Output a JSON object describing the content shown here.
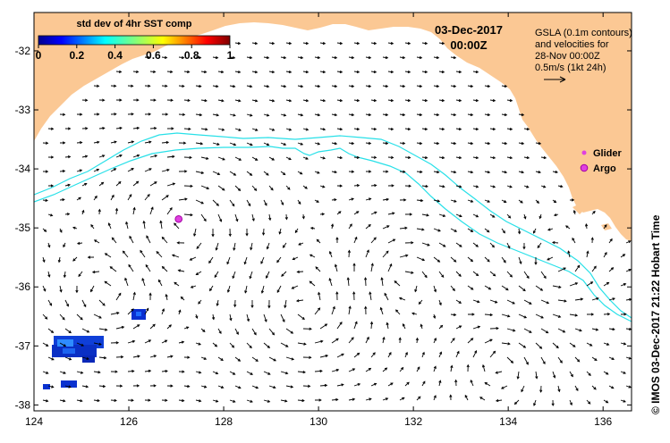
{
  "map": {
    "lon_range": [
      124,
      136.6
    ],
    "lat_range": [
      -38.1,
      -31.35
    ],
    "x_ticks": [
      124,
      126,
      128,
      130,
      132,
      134,
      136
    ],
    "x_tick_labels": [
      "124",
      "126",
      "128",
      "130",
      "132",
      "134",
      "136"
    ],
    "y_ticks": [
      -32,
      -33,
      -34,
      -35,
      -36,
      -37,
      -38
    ],
    "y_tick_labels": [
      "-32",
      "-33",
      "-34",
      "-35",
      "-36",
      "-37",
      "-38"
    ]
  },
  "colorbar": {
    "title": "std dev of 4hr SST comp",
    "tick_labels": [
      "0",
      "0.2",
      "0.4",
      "0.6",
      "0.8",
      "1"
    ]
  },
  "header": {
    "date": "03-Dec-2017",
    "time": "00:00Z"
  },
  "info": {
    "line1": "GSLA (0.1m contours)",
    "line2": "and velocities for",
    "line3": "28-Nov 00:00Z",
    "line4": "0.5m/s (1kt 24h)"
  },
  "legend": {
    "glider_label": "Glider",
    "argo_label": "Argo"
  },
  "credit": "© IMOS 03-Dec-2017 21:22 Hobart Time",
  "colors": {
    "land": "#fbc894",
    "contour": "#28e0e8",
    "marker": "#e040e0",
    "arrow": "#000000"
  },
  "argo_float": {
    "lon": 127.05,
    "lat": -34.85
  }
}
